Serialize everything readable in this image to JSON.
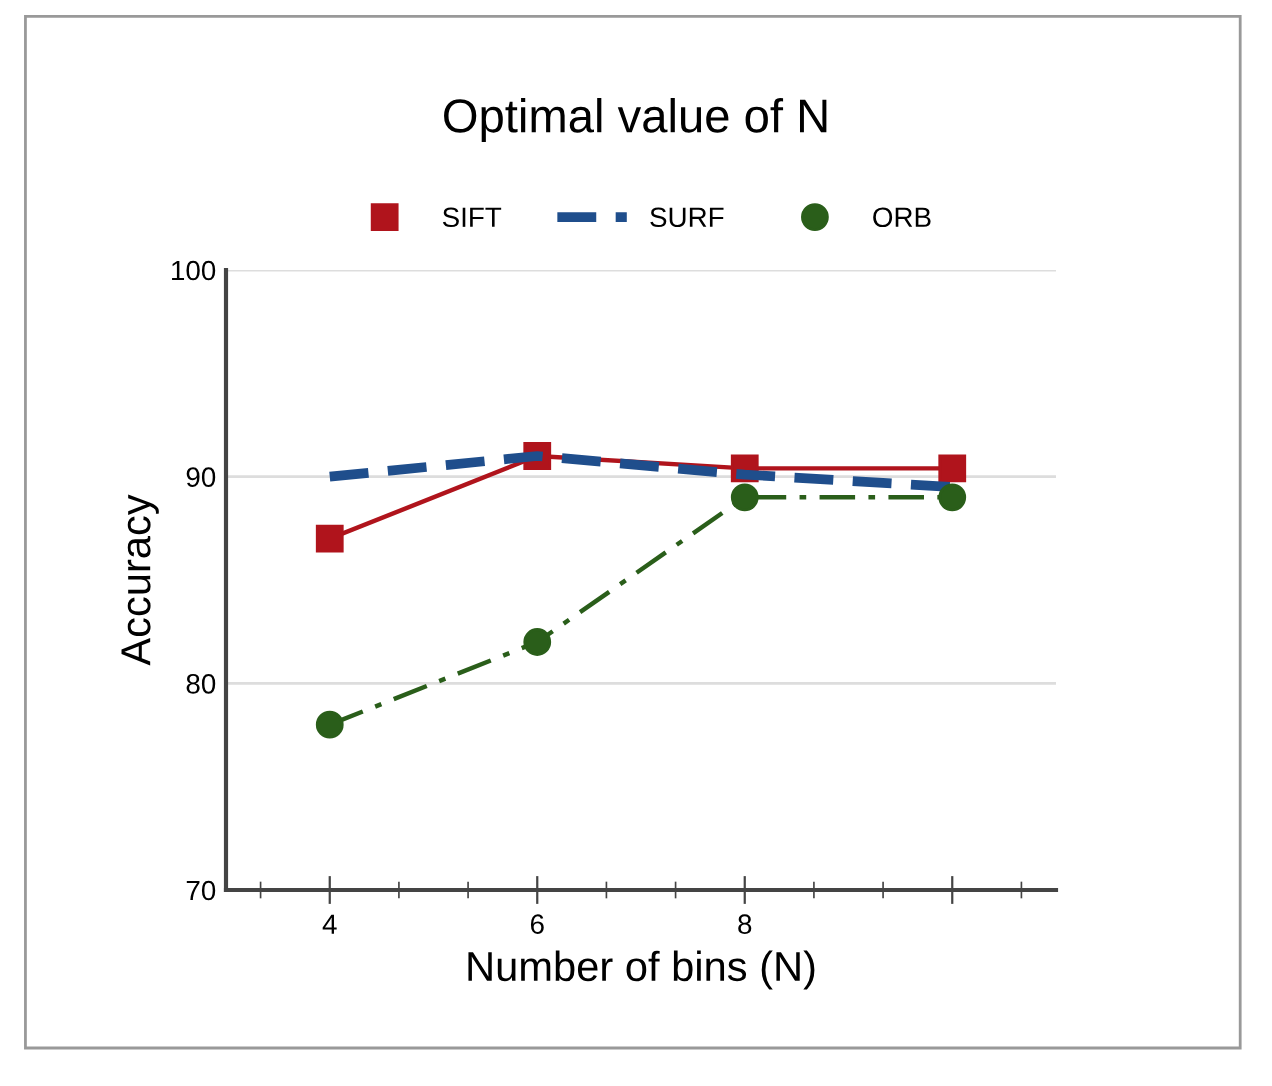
{
  "chart_data": {
    "type": "line",
    "title": "Optimal value of N",
    "xlabel": "Number of bins (N)",
    "ylabel": "Accuracy",
    "x": [
      4,
      6,
      8,
      10
    ],
    "series": [
      {
        "name": "SIFT",
        "color": "#b0141c",
        "values": [
          87,
          91,
          90.4,
          90.4
        ],
        "marker": "square",
        "line_style": "solid"
      },
      {
        "name": "SURF",
        "color": "#1f4e8c",
        "values": [
          90,
          91,
          90.1,
          89.5
        ],
        "marker": "none",
        "line_style": "dashed"
      },
      {
        "name": "ORB",
        "color": "#2a5e1a",
        "values": [
          78,
          82,
          89,
          89
        ],
        "marker": "circle",
        "line_style": "dashdot"
      }
    ],
    "xlim": [
      3,
      11
    ],
    "xticks": [
      4,
      6,
      8,
      {
        "value": 10,
        "label": null
      }
    ],
    "ylim": [
      70,
      100
    ],
    "yticks": [
      70,
      80,
      90,
      100
    ],
    "grid": "y",
    "legend": "top"
  }
}
